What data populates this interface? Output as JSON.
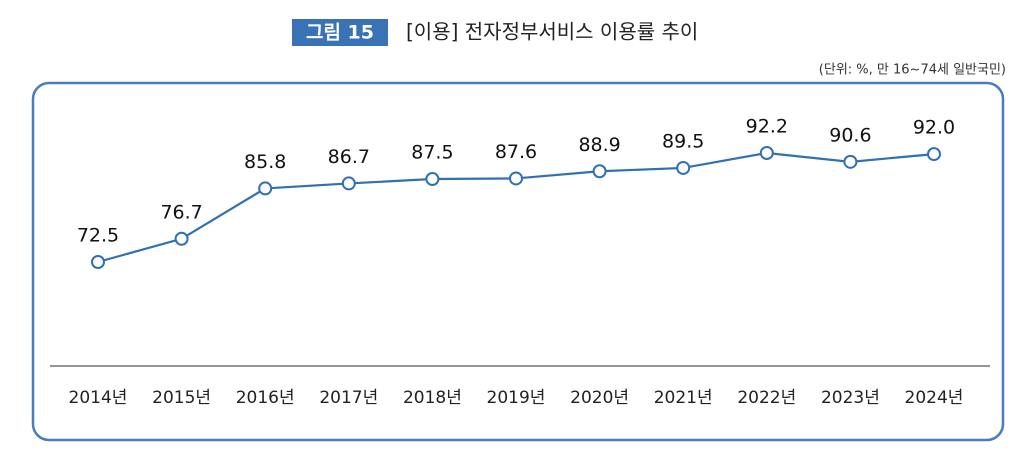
{
  "chart_data": {
    "type": "line",
    "figure_label": "그림 15",
    "title": "[이용] 전자정부서비스 이용률 추이",
    "subtitle": "(단위: %, 만 16~74세 일반국민)",
    "categories": [
      "2014년",
      "2015년",
      "2016년",
      "2017년",
      "2018년",
      "2019년",
      "2020년",
      "2021년",
      "2022년",
      "2023년",
      "2024년"
    ],
    "values": [
      72.5,
      76.7,
      85.8,
      86.7,
      87.5,
      87.6,
      88.9,
      89.5,
      92.2,
      90.6,
      92.0
    ],
    "value_labels": [
      "72.5",
      "76.7",
      "85.8",
      "86.7",
      "87.5",
      "87.6",
      "88.9",
      "89.5",
      "92.2",
      "90.6",
      "92.0"
    ],
    "color": "#3070b3"
  }
}
